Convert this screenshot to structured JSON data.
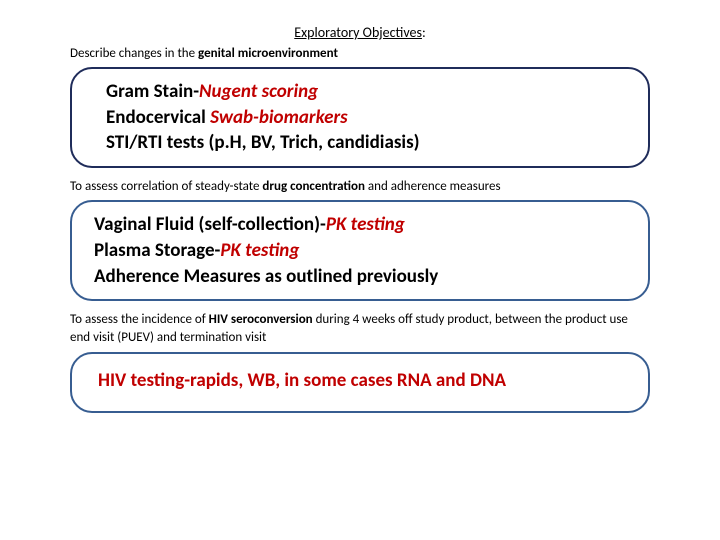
{
  "heading": {
    "label": "Exploratory Objectives",
    "suffix": ":"
  },
  "section1": {
    "objective_prefix": "Describe changes in the ",
    "objective_bold": "genital microenvironment",
    "box": {
      "line1_plain": "Gram Stain-",
      "line1_red": "Nugent scoring",
      "line2_plain": "Endocervical ",
      "line2_red": "Swab-biomarkers",
      "line3": "STI/RTI tests (p.H, BV, Trich, candidiasis)"
    }
  },
  "section2": {
    "objective_prefix": "To assess correlation of steady-state ",
    "objective_bold": "drug concentration",
    "objective_mid": " and ",
    "objective_plain2": "adherence measures",
    "box": {
      "line1_plain": "Vaginal Fluid (self-collection)-",
      "line1_red": "PK testing",
      "line2_plain": "Plasma Storage-",
      "line2_red": "PK testing",
      "line3": "Adherence Measures as outlined previously"
    }
  },
  "section3": {
    "objective_prefix": "To assess the incidence of ",
    "objective_bold": "HIV seroconversion",
    "objective_suffix": " during 4 weeks off study product, between the product use end visit (PUEV) and termination visit",
    "box": {
      "line1": "HIV testing-rapids, WB, in some cases RNA and DNA"
    }
  },
  "colors": {
    "border1": "#1f2c5a",
    "border2": "#375d91",
    "red": "#c00000",
    "text": "#000000",
    "background": "#ffffff"
  }
}
